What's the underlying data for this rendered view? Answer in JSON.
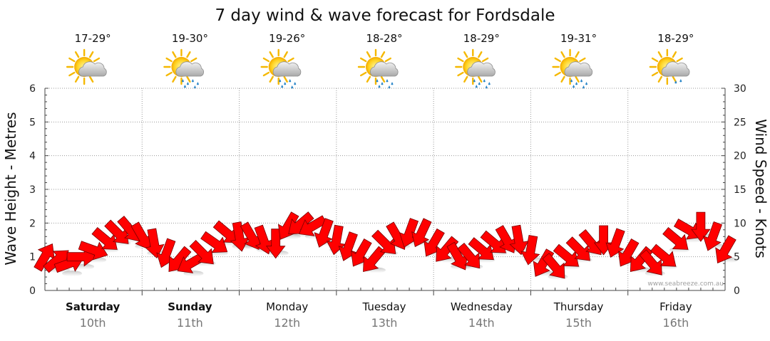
{
  "chart_data": {
    "type": "line",
    "title": "7 day wind & wave forecast for Fordsdale",
    "ylabel_left": "Wave Height - Metres",
    "ylabel_right": "Wind Speed - Knots",
    "ylim_left": [
      0,
      6
    ],
    "ylim_right": [
      0,
      30
    ],
    "yticks_left": [
      "0",
      "1",
      "2",
      "3",
      "4",
      "5",
      "6"
    ],
    "yticks_right": [
      "0",
      "5",
      "10",
      "15",
      "20",
      "25",
      "30"
    ],
    "grid": true,
    "watermark": "www.seabreeze.com.au",
    "days": [
      {
        "name": "Saturday",
        "date": "10th",
        "bold": true,
        "temp": "17-29°",
        "weather_icon": "sun-cloud-icon"
      },
      {
        "name": "Sunday",
        "date": "11th",
        "bold": true,
        "temp": "19-30°",
        "weather_icon": "sun-cloud-rain-icon"
      },
      {
        "name": "Monday",
        "date": "12th",
        "bold": false,
        "temp": "19-26°",
        "weather_icon": "sun-cloud-rain-icon"
      },
      {
        "name": "Tuesday",
        "date": "13th",
        "bold": false,
        "temp": "18-28°",
        "weather_icon": "sun-cloud-rain-icon"
      },
      {
        "name": "Wednesday",
        "date": "14th",
        "bold": false,
        "temp": "18-29°",
        "weather_icon": "sun-cloud-rain-icon"
      },
      {
        "name": "Thursday",
        "date": "15th",
        "bold": false,
        "temp": "19-31°",
        "weather_icon": "sun-cloud-rain-icon"
      },
      {
        "name": "Friday",
        "date": "16th",
        "bold": false,
        "temp": "18-29°",
        "weather_icon": "sun-cloud-light-rain-icon"
      }
    ],
    "series": [
      {
        "name": "Wind Speed",
        "unit": "knots",
        "color": "#ff0000",
        "marker": "direction-arrow",
        "points_per_day": 8,
        "values": [
          5,
          4.5,
          4,
          5,
          6,
          7.5,
          8.5,
          9,
          8,
          7,
          5.5,
          4.5,
          4,
          5.5,
          7,
          8.5,
          8,
          8,
          7.5,
          7,
          9.5,
          9.8,
          9.5,
          8.5,
          7.5,
          6.5,
          5.5,
          4.5,
          7,
          8,
          8.5,
          8.5,
          7,
          6,
          5,
          5,
          6,
          7,
          7.5,
          7.5,
          6,
          4,
          3.5,
          5,
          6,
          7,
          7.5,
          7,
          5.5,
          4.5,
          4,
          5,
          7.5,
          9,
          9.5,
          8,
          6
        ],
        "directions_deg": [
          300,
          320,
          340,
          0,
          20,
          40,
          45,
          50,
          60,
          80,
          110,
          130,
          150,
          45,
          35,
          40,
          80,
          60,
          70,
          90,
          120,
          140,
          150,
          110,
          100,
          110,
          120,
          130,
          45,
          60,
          110,
          115,
          120,
          130,
          60,
          50,
          40,
          40,
          60,
          80,
          100,
          120,
          50,
          40,
          45,
          50,
          90,
          110,
          120,
          130,
          50,
          40,
          40,
          30,
          90,
          110,
          120
        ]
      }
    ]
  }
}
